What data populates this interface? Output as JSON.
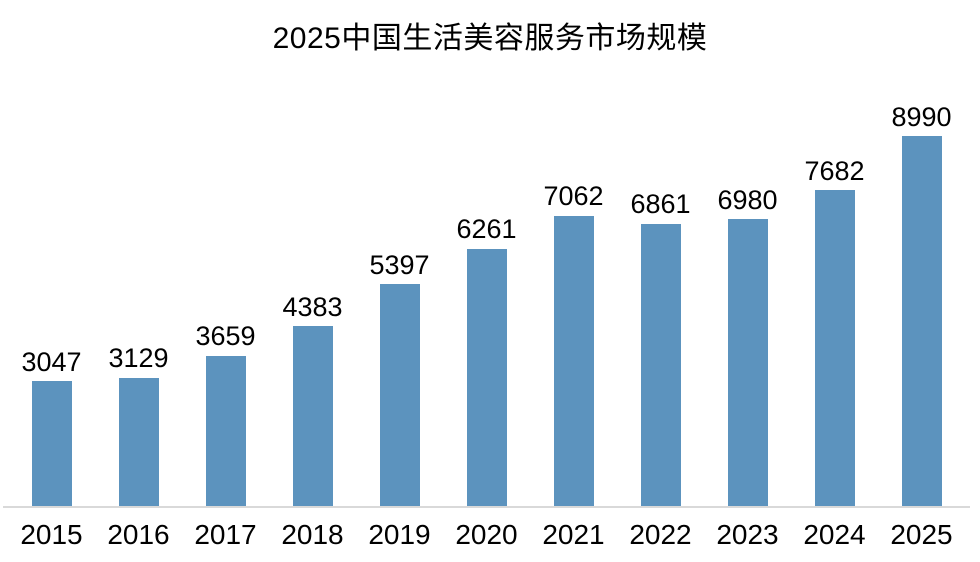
{
  "colors": {
    "bar": "#5C93BE",
    "axis_line": "#D9D9D9",
    "text": "#000000",
    "background": "#FFFFFF"
  },
  "chart_data": {
    "type": "bar",
    "title": "2025中国生活美容服务市场规模",
    "categories": [
      "2015",
      "2016",
      "2017",
      "2018",
      "2019",
      "2020",
      "2021",
      "2022",
      "2023",
      "2024",
      "2025"
    ],
    "values": [
      3047,
      3129,
      3659,
      4383,
      5397,
      6261,
      7062,
      6861,
      6980,
      7682,
      8990
    ],
    "xlabel": "",
    "ylabel": "",
    "ylim": [
      0,
      9700
    ],
    "grid": false,
    "legend": "none",
    "data_labels": true
  }
}
